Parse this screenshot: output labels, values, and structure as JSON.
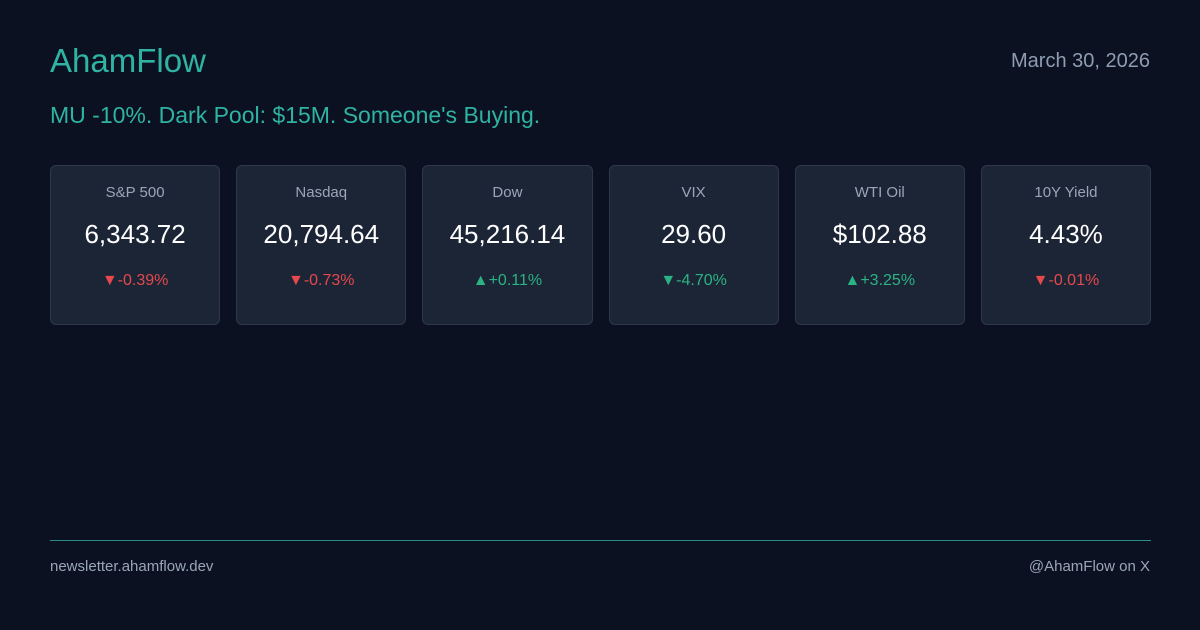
{
  "header": {
    "brand": "AhamFlow",
    "date": "March 30, 2026"
  },
  "headline": "MU -10%. Dark Pool: $15M. Someone's Buying.",
  "cards": [
    {
      "label": "S&P 500",
      "value": "6,343.72",
      "change": "▼-0.39%",
      "color": "#e5484d"
    },
    {
      "label": "Nasdaq",
      "value": "20,794.64",
      "change": "▼-0.73%",
      "color": "#e5484d"
    },
    {
      "label": "Dow",
      "value": "45,216.14",
      "change": "▲+0.11%",
      "color": "#2bb383"
    },
    {
      "label": "VIX",
      "value": "29.60",
      "change": "▼-4.70%",
      "color": "#2bb383"
    },
    {
      "label": "WTI Oil",
      "value": "$102.88",
      "change": "▲+3.25%",
      "color": "#2bb383"
    },
    {
      "label": "10Y Yield",
      "value": "4.43%",
      "change": "▼-0.01%",
      "color": "#e5484d"
    }
  ],
  "footer": {
    "left": "newsletter.ahamflow.dev",
    "right": "@AhamFlow on X"
  }
}
